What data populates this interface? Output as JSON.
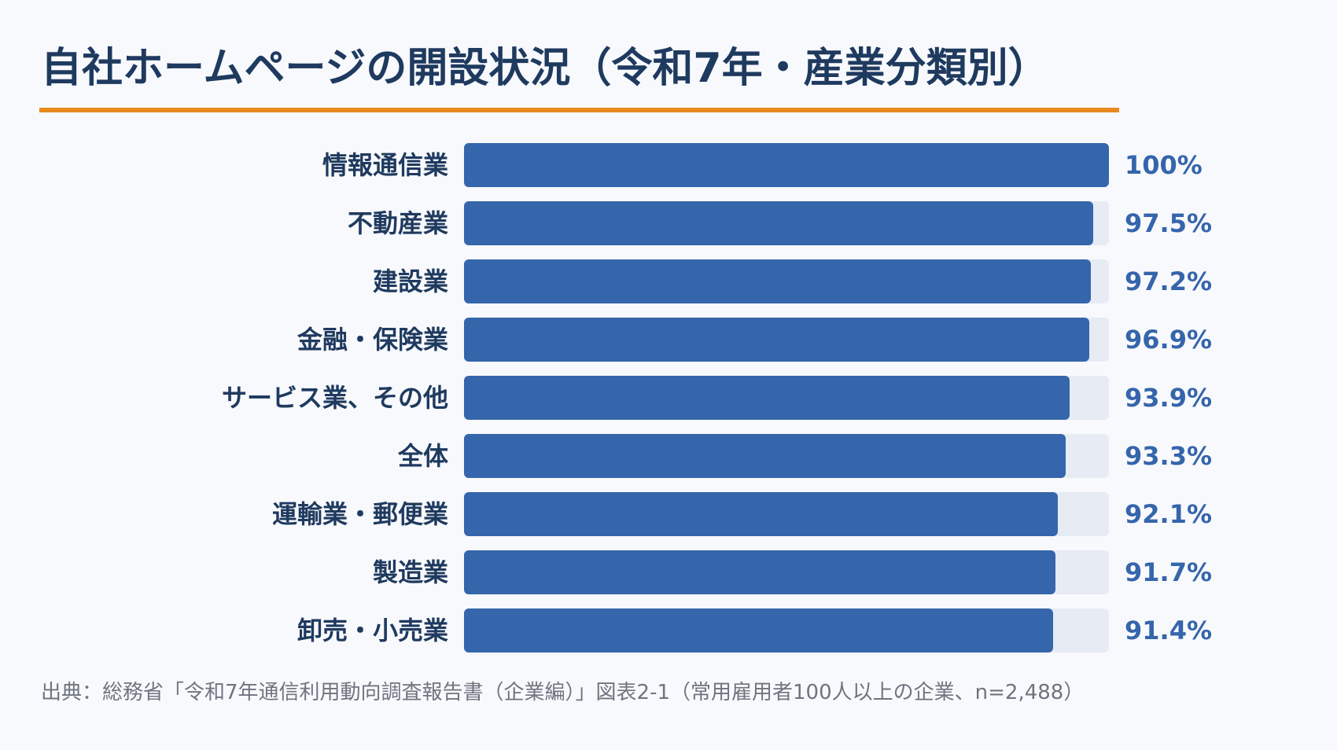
{
  "title": "自社ホームページの開設状況（令和7年・産業分類別）",
  "source": "出典：総務省「令和7年通信利用動向調査報告書（企業編）」図表2-1（常用雇用者100人以上の企業、n=2,488）",
  "colors": {
    "bar": "#3565ab",
    "track": "#e6ebf4",
    "title": "#1f3a5f",
    "accent_rule": "#e68a1f",
    "value_text": "#3565ab"
  },
  "chart_data": {
    "type": "bar",
    "orientation": "horizontal",
    "categories": [
      "情報通信業",
      "不動産業",
      "建設業",
      "金融・保険業",
      "サービス業、その他",
      "全体",
      "運輸業・郵便業",
      "製造業",
      "卸売・小売業"
    ],
    "values": [
      100,
      97.5,
      97.2,
      96.9,
      93.9,
      93.3,
      92.1,
      91.7,
      91.4
    ],
    "value_labels": [
      "100%",
      "97.5%",
      "97.2%",
      "96.9%",
      "93.9%",
      "93.3%",
      "92.1%",
      "91.7%",
      "91.4%"
    ],
    "unit": "%",
    "xlim": [
      0,
      100
    ],
    "grid": false,
    "legend": "none"
  }
}
